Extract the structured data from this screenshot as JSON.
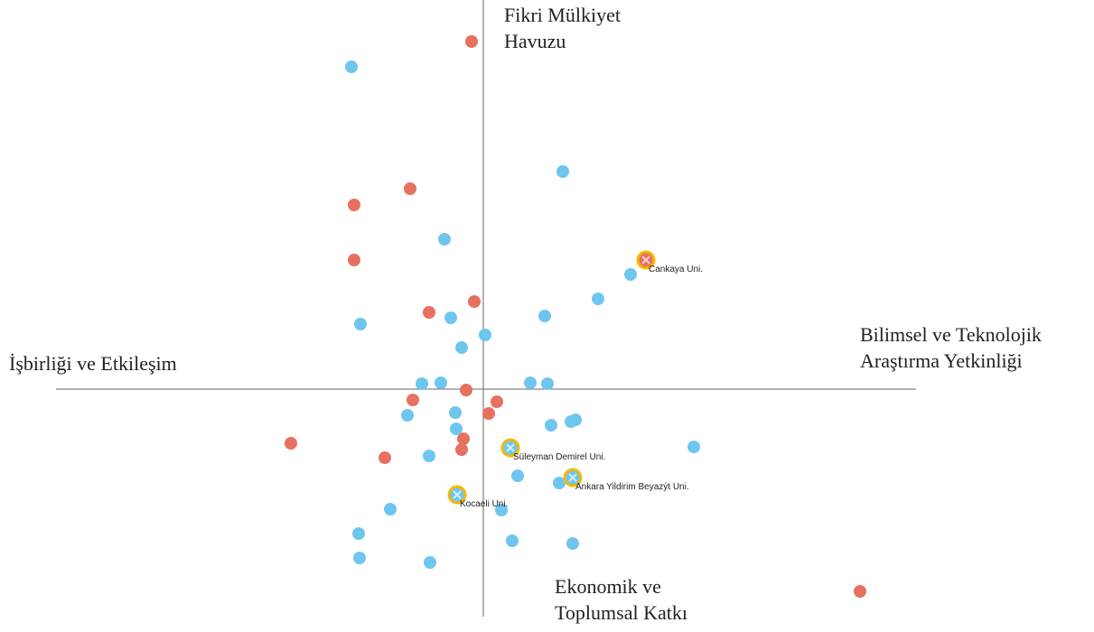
{
  "chart_data": {
    "type": "scatter",
    "axis_labels": {
      "top": [
        "Fikri Mülkiyet",
        "Havuzu"
      ],
      "right": [
        "Bilimsel ve Teknolojik",
        "Araştırma Yetkinliği"
      ],
      "bottom": [
        "Ekonomik ve",
        "Toplumsal Katkı"
      ],
      "left": [
        "İşbirliği ve Etkileşim"
      ]
    },
    "xlim": [
      -473,
      479
    ],
    "ylim": [
      -252,
      431
    ],
    "series": [
      {
        "color": "#e8705f",
        "x": [
          -13,
          -81,
          -143,
          -143,
          -10,
          -60,
          -19,
          -78,
          15,
          6,
          -22,
          -24,
          -213,
          -109,
          417
        ],
        "y": [
          385,
          222,
          204,
          143,
          97,
          85,
          -1,
          -12,
          -14,
          -27,
          -55,
          -67,
          -60,
          -76,
          -224
        ]
      },
      {
        "color": "#6ec6ef",
        "x": [
          -146,
          88,
          -43,
          163,
          127,
          68,
          -36,
          -136,
          2,
          -24,
          -68,
          -47,
          52,
          71,
          -84,
          -31,
          -30,
          75,
          97,
          102,
          -60,
          233,
          38,
          84,
          -103,
          20,
          -138,
          32,
          99,
          -137,
          -59
        ],
        "y": [
          357,
          241,
          166,
          127,
          100,
          81,
          79,
          72,
          60,
          46,
          6,
          7,
          7,
          6,
          -29,
          -26,
          -44,
          -40,
          -36,
          -34,
          -74,
          -64,
          -96,
          -104,
          -133,
          -134,
          -160,
          -168,
          -171,
          -187,
          -192
        ]
      }
    ],
    "highlighted": {
      "ring_color": "#f5b800",
      "points": [
        {
          "label": "Cankaya Uni.",
          "x": 180,
          "y": 143,
          "color": "#e8705f"
        },
        {
          "label": "Süleyman Demirel Uni.",
          "x": 30,
          "y": -65,
          "color": "#6ec6ef"
        },
        {
          "label": "Ankara Yildirim Beyazýt Uni.",
          "x": 99,
          "y": -98,
          "color": "#6ec6ef"
        },
        {
          "label": "Kocaeli Uni.",
          "x": -29,
          "y": -117,
          "color": "#6ec6ef"
        }
      ]
    }
  }
}
